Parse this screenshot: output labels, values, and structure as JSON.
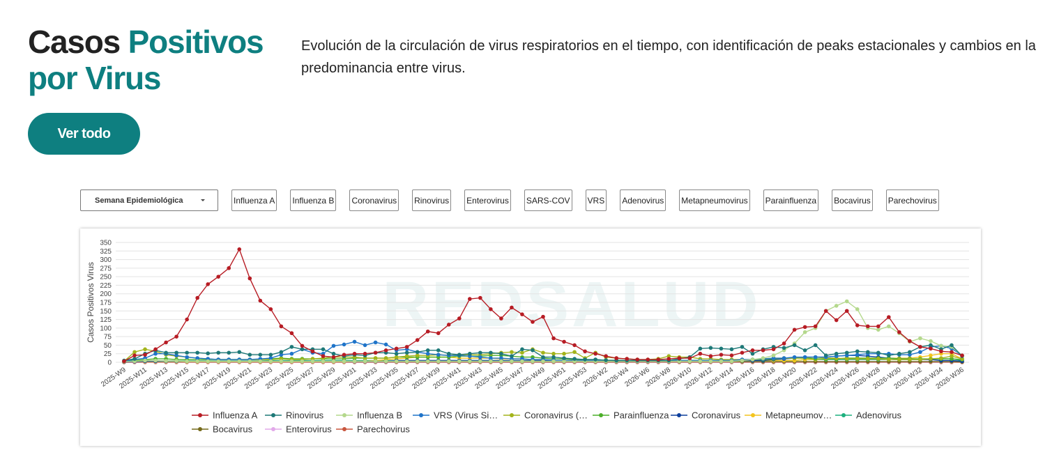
{
  "header": {
    "title_part1": "Casos",
    "title_part2": "Positivos por Virus",
    "description": "Evolución de la circulación de virus respiratorios en el tiempo, con identificación de peaks estacionales y cambios en la predominancia entre virus.",
    "button": "Ver todo"
  },
  "filters": {
    "dropdown": "Semana Epidemiológica",
    "buttons": [
      "Influenza A",
      "Influenza B",
      "Coronavirus",
      "Rinovirus",
      "Enterovirus",
      "SARS-COV",
      "VRS",
      "Adenovirus",
      "Metapneumovirus",
      "Parainfluenza",
      "Bocavirus",
      "Parechovirus"
    ]
  },
  "chart_data": {
    "type": "line",
    "ylabel": "Casos Positivos Virus",
    "watermark": "REDSALUD",
    "categories": [
      "2025-W9",
      null,
      "2025-W11",
      null,
      "2025-W13",
      null,
      "2025-W15",
      null,
      "2025-W17",
      null,
      "2025-W19",
      null,
      "2025-W21",
      null,
      "2025-W23",
      null,
      "2025-W25",
      null,
      "2025-W27",
      null,
      "2025-W29",
      null,
      "2025-W31",
      null,
      "2025-W33",
      null,
      "2025-W35",
      null,
      "2025-W37",
      null,
      "2025-W39",
      null,
      "2025-W41",
      null,
      "2025-W43",
      null,
      "2025-W45",
      null,
      "2025-W47",
      null,
      "2025-W49",
      null,
      "2025-W51",
      null,
      "2025-W53",
      null,
      "2026-W2",
      null,
      "2026-W4",
      null,
      "2026-W6",
      null,
      "2026-W8",
      null,
      "2026-W10",
      null,
      "2026-W12",
      null,
      "2026-W14",
      null,
      "2026-W16",
      null,
      "2026-W18",
      null,
      "2026-W20",
      null,
      "2026-W22",
      null,
      "2026-W24",
      null,
      "2026-W26",
      null,
      "2026-W28",
      null,
      "2026-W30",
      null,
      "2026-W32",
      null,
      "2026-W34",
      null,
      "2026-W36"
    ],
    "ylim": [
      0,
      350
    ],
    "yticks": [
      0,
      25,
      50,
      75,
      100,
      125,
      150,
      175,
      200,
      225,
      250,
      275,
      300,
      325,
      350
    ],
    "grid": true,
    "series": [
      {
        "name": "Influenza A",
        "color": "#b71c24",
        "values": [
          3,
          20,
          22,
          38,
          58,
          75,
          125,
          188,
          228,
          250,
          275,
          330,
          245,
          180,
          155,
          105,
          85,
          48,
          32,
          18,
          15,
          22,
          25,
          25,
          28,
          35,
          40,
          45,
          65,
          90,
          85,
          110,
          128,
          185,
          188,
          155,
          128,
          160,
          140,
          118,
          133,
          70,
          60,
          50,
          32,
          25,
          18,
          12,
          10,
          8,
          8,
          8,
          10,
          12,
          12,
          25,
          18,
          22,
          20,
          28,
          35,
          35,
          38,
          55,
          95,
          103,
          105,
          150,
          123,
          150,
          108,
          105,
          105,
          132,
          88,
          62,
          45,
          40,
          32,
          30,
          20
        ]
      },
      {
        "name": "Rinovirus",
        "color": "#1d7877",
        "values": [
          5,
          10,
          25,
          35,
          28,
          28,
          28,
          28,
          26,
          28,
          28,
          30,
          22,
          22,
          22,
          30,
          45,
          38,
          38,
          38,
          25,
          18,
          22,
          20,
          28,
          28,
          25,
          28,
          30,
          35,
          35,
          25,
          22,
          25,
          28,
          28,
          25,
          18,
          38,
          35,
          15,
          15,
          12,
          10,
          8,
          8,
          6,
          5,
          5,
          5,
          5,
          5,
          5,
          10,
          15,
          40,
          42,
          40,
          38,
          45,
          25,
          38,
          45,
          42,
          50,
          35,
          50,
          20,
          25,
          28,
          32,
          30,
          28,
          20,
          25,
          30,
          45,
          50,
          38,
          50,
          18
        ]
      },
      {
        "name": "Influenza B",
        "color": "#b4d88c",
        "values": [
          2,
          3,
          5,
          5,
          4,
          4,
          3,
          3,
          3,
          3,
          3,
          3,
          3,
          3,
          3,
          3,
          3,
          3,
          3,
          3,
          3,
          3,
          3,
          3,
          3,
          3,
          3,
          3,
          3,
          3,
          3,
          3,
          3,
          3,
          3,
          3,
          3,
          3,
          3,
          3,
          3,
          3,
          3,
          3,
          3,
          3,
          3,
          3,
          3,
          3,
          3,
          3,
          3,
          3,
          3,
          3,
          3,
          3,
          3,
          5,
          8,
          12,
          20,
          35,
          55,
          88,
          100,
          150,
          165,
          178,
          155,
          100,
          95,
          105,
          85,
          60,
          70,
          62,
          48,
          45,
          20
        ]
      },
      {
        "name": "VRS (Virus Si…",
        "color": "#1f74c9",
        "values": [
          3,
          8,
          12,
          25,
          25,
          20,
          15,
          12,
          10,
          8,
          8,
          8,
          8,
          10,
          12,
          22,
          25,
          38,
          28,
          25,
          48,
          52,
          60,
          50,
          58,
          52,
          35,
          38,
          30,
          25,
          22,
          20,
          20,
          18,
          15,
          12,
          12,
          10,
          10,
          8,
          8,
          6,
          5,
          5,
          5,
          5,
          5,
          5,
          5,
          5,
          5,
          5,
          5,
          5,
          5,
          5,
          5,
          5,
          5,
          8,
          8,
          10,
          12,
          12,
          15,
          15,
          15,
          15,
          18,
          20,
          22,
          25,
          25,
          25,
          22,
          22,
          30,
          45,
          48,
          40,
          20
        ]
      },
      {
        "name": "Coronavirus (…",
        "color": "#a3b41b",
        "values": [
          3,
          30,
          38,
          32,
          22,
          18,
          15,
          12,
          10,
          8,
          8,
          8,
          8,
          8,
          8,
          10,
          8,
          8,
          10,
          12,
          15,
          15,
          15,
          12,
          12,
          12,
          15,
          18,
          20,
          20,
          22,
          20,
          22,
          22,
          22,
          25,
          28,
          30,
          28,
          38,
          28,
          25,
          25,
          30,
          12,
          28,
          15,
          12,
          10,
          8,
          8,
          10,
          18,
          15,
          15,
          10,
          10,
          8,
          8,
          8,
          8,
          10,
          12,
          12,
          12,
          12,
          15,
          12,
          12,
          10,
          10,
          10,
          10,
          8,
          8,
          8,
          8,
          10,
          12,
          18,
          10
        ]
      },
      {
        "name": "Parainfluenza",
        "color": "#4caf2a",
        "values": [
          2,
          5,
          8,
          10,
          10,
          8,
          8,
          8,
          8,
          8,
          8,
          8,
          8,
          8,
          10,
          12,
          10,
          10,
          10,
          10,
          10,
          10,
          12,
          12,
          12,
          12,
          15,
          15,
          15,
          15,
          15,
          15,
          18,
          18,
          18,
          20,
          20,
          18,
          15,
          15,
          12,
          10,
          10,
          8,
          8,
          8,
          6,
          6,
          5,
          5,
          5,
          5,
          5,
          5,
          5,
          5,
          5,
          5,
          5,
          6,
          8,
          8,
          10,
          12,
          12,
          12,
          10,
          10,
          10,
          12,
          12,
          12,
          12,
          12,
          10,
          10,
          10,
          10,
          10,
          10,
          8
        ]
      },
      {
        "name": "Coronavirus",
        "color": "#0d3f9c",
        "values": [
          1,
          2,
          3,
          3,
          3,
          3,
          3,
          3,
          3,
          3,
          3,
          3,
          3,
          3,
          3,
          3,
          3,
          3,
          3,
          3,
          3,
          3,
          3,
          3,
          3,
          3,
          5,
          5,
          5,
          5,
          5,
          5,
          5,
          5,
          5,
          5,
          5,
          5,
          5,
          5,
          5,
          5,
          5,
          5,
          5,
          5,
          5,
          5,
          5,
          5,
          5,
          5,
          5,
          5,
          5,
          5,
          5,
          5,
          5,
          5,
          5,
          5,
          8,
          10,
          12,
          15,
          15,
          15,
          18,
          20,
          20,
          18,
          15,
          12,
          10,
          10,
          8,
          8,
          5,
          5,
          3
        ]
      },
      {
        "name": "Metapneumov…",
        "color": "#f4c41d",
        "values": [
          1,
          2,
          2,
          2,
          2,
          2,
          2,
          2,
          2,
          2,
          2,
          2,
          2,
          2,
          2,
          2,
          2,
          2,
          2,
          2,
          2,
          2,
          3,
          3,
          5,
          8,
          10,
          12,
          15,
          15,
          15,
          15,
          12,
          12,
          12,
          12,
          10,
          10,
          10,
          8,
          8,
          6,
          5,
          5,
          5,
          5,
          5,
          5,
          5,
          5,
          5,
          5,
          5,
          5,
          5,
          5,
          5,
          5,
          5,
          5,
          5,
          5,
          5,
          5,
          5,
          8,
          8,
          10,
          10,
          12,
          12,
          12,
          12,
          12,
          12,
          12,
          15,
          20,
          25,
          25,
          10
        ]
      },
      {
        "name": "Adenovirus",
        "color": "#1db07e",
        "values": [
          2,
          3,
          3,
          4,
          4,
          4,
          4,
          4,
          4,
          4,
          4,
          4,
          4,
          4,
          5,
          5,
          5,
          5,
          5,
          5,
          5,
          5,
          5,
          5,
          5,
          5,
          5,
          5,
          5,
          5,
          5,
          5,
          5,
          5,
          5,
          5,
          5,
          5,
          5,
          5,
          5,
          5,
          5,
          5,
          5,
          5,
          5,
          5,
          5,
          5,
          5,
          5,
          5,
          5,
          5,
          5,
          5,
          5,
          5,
          5,
          5,
          5,
          5,
          5,
          5,
          8,
          8,
          8,
          8,
          8,
          8,
          8,
          8,
          8,
          8,
          8,
          8,
          10,
          10,
          10,
          5
        ]
      },
      {
        "name": "Bocavirus",
        "color": "#756a1b",
        "values": [
          1,
          2,
          2,
          2,
          2,
          2,
          2,
          2,
          2,
          2,
          2,
          2,
          2,
          2,
          2,
          2,
          2,
          2,
          2,
          2,
          2,
          2,
          2,
          2,
          2,
          2,
          2,
          2,
          2,
          2,
          2,
          2,
          2,
          2,
          2,
          2,
          2,
          2,
          2,
          2,
          2,
          2,
          2,
          2,
          2,
          2,
          2,
          2,
          2,
          2,
          2,
          2,
          2,
          2,
          2,
          2,
          2,
          2,
          2,
          2,
          2,
          2,
          2,
          2,
          2,
          2,
          2,
          2,
          2,
          2,
          2,
          2,
          2,
          2,
          2,
          2,
          2,
          2,
          2,
          2,
          1
        ]
      },
      {
        "name": "Enterovirus",
        "color": "#e2a9ea",
        "values": [
          1,
          1,
          1,
          1,
          1,
          1,
          1,
          1,
          1,
          1,
          1,
          1,
          1,
          1,
          1,
          1,
          1,
          1,
          1,
          1,
          1,
          1,
          1,
          1,
          1,
          1,
          1,
          1,
          1,
          1,
          1,
          1,
          1,
          1,
          1,
          1,
          1,
          1,
          1,
          1,
          1,
          1,
          1,
          1,
          1,
          1,
          1,
          1,
          1,
          1,
          1,
          1,
          1,
          1,
          1,
          1,
          1,
          1,
          1,
          1,
          1,
          1,
          1,
          1,
          1,
          1,
          1,
          1,
          1,
          1,
          1,
          1,
          1,
          1,
          1,
          1,
          1,
          1,
          1,
          1,
          1
        ]
      },
      {
        "name": "Parechovirus",
        "color": "#c8553d",
        "values": [
          0,
          0,
          0,
          0,
          0,
          0,
          0,
          0,
          0,
          0,
          0,
          0,
          0,
          0,
          0,
          0,
          0,
          0,
          0,
          0,
          0,
          0,
          0,
          0,
          0,
          0,
          0,
          0,
          0,
          0,
          0,
          0,
          0,
          0,
          0,
          0,
          0,
          0,
          0,
          0,
          0,
          0,
          0,
          0,
          0,
          0,
          0,
          0,
          0,
          0,
          0,
          0,
          0,
          0,
          0,
          0,
          0,
          0,
          0,
          0,
          0,
          0,
          0,
          0,
          0,
          0,
          0,
          0,
          0,
          0,
          0,
          0,
          0,
          0,
          0,
          0,
          0,
          0,
          0,
          0,
          0
        ]
      }
    ]
  }
}
